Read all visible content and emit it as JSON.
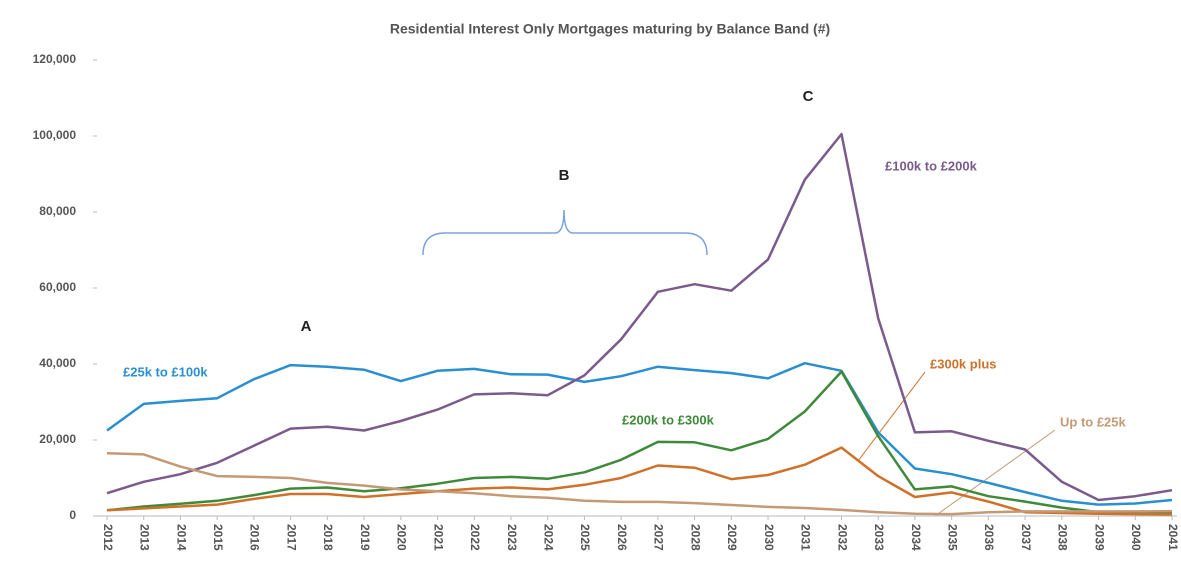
{
  "chart_data": {
    "type": "line",
    "title": "Residential Interest Only Mortgages maturing by Balance Band (#)",
    "annotations": [
      "A",
      "B",
      "C"
    ],
    "categories": [
      "2012",
      "2013",
      "2014",
      "2015",
      "2016",
      "2017",
      "2018",
      "2019",
      "2020",
      "2021",
      "2022",
      "2023",
      "2024",
      "2025",
      "2026",
      "2027",
      "2028",
      "2029",
      "2030",
      "2031",
      "2032",
      "2033",
      "2034",
      "2035",
      "2036",
      "2037",
      "2038",
      "2039",
      "2040",
      "2041"
    ],
    "series": [
      {
        "name": "£25k to £100k",
        "color": "#2a8fd0",
        "values": [
          22500,
          29500,
          30300,
          31000,
          36000,
          39700,
          39300,
          38500,
          35500,
          38200,
          38700,
          37300,
          37200,
          35300,
          36800,
          39300,
          38400,
          37600,
          36200,
          40200,
          38200,
          22000,
          12500,
          11000,
          8700,
          6300,
          4000,
          3000,
          3300,
          4200
        ]
      },
      {
        "name": "£100k to £200k",
        "color": "#7b5b8c",
        "values": [
          6000,
          9000,
          11000,
          14000,
          18500,
          23000,
          23500,
          22500,
          25000,
          28000,
          32000,
          32300,
          31800,
          37000,
          46500,
          59000,
          61000,
          59300,
          67500,
          88500,
          100500,
          52000,
          22000,
          22300,
          19800,
          17500,
          9000,
          4200,
          5200,
          6800
        ]
      },
      {
        "name": "£200k to £300k",
        "color": "#3f8a3a",
        "values": [
          1500,
          2500,
          3200,
          4000,
          5500,
          7200,
          7500,
          6500,
          7300,
          8500,
          10000,
          10300,
          9800,
          11500,
          14800,
          19500,
          19400,
          17300,
          20300,
          27500,
          38000,
          21000,
          7000,
          7800,
          5200,
          3800,
          2200,
          1000,
          900,
          800
        ]
      },
      {
        "name": "£300k plus",
        "color": "#d0712a",
        "values": [
          1500,
          2000,
          2500,
          3000,
          4500,
          5800,
          5800,
          5000,
          5800,
          6500,
          7200,
          7500,
          7000,
          8200,
          10000,
          13300,
          12700,
          9700,
          10800,
          13500,
          18000,
          10500,
          5000,
          6200,
          3800,
          1000,
          800,
          600,
          500,
          400
        ]
      },
      {
        "name": "Up to £25k",
        "color": "#c49a76",
        "values": [
          16500,
          16200,
          13000,
          10500,
          10300,
          10000,
          8700,
          8000,
          7000,
          6500,
          6000,
          5200,
          4800,
          4000,
          3700,
          3700,
          3400,
          2900,
          2400,
          2100,
          1600,
          1000,
          600,
          500,
          1000,
          1200,
          1200,
          1200,
          1200,
          1300
        ]
      }
    ],
    "ylim": [
      0,
      120000
    ],
    "yticks": [
      0,
      {
        "value": 20000,
        "label": "20,000"
      },
      {
        "value": 40000,
        "label": "40,000"
      },
      {
        "value": 60000,
        "label": "60,000"
      },
      {
        "value": 80000,
        "label": "80,000"
      },
      {
        "value": 100000,
        "label": "100,000"
      },
      {
        "value": 120000,
        "label": "120,000"
      }
    ]
  }
}
